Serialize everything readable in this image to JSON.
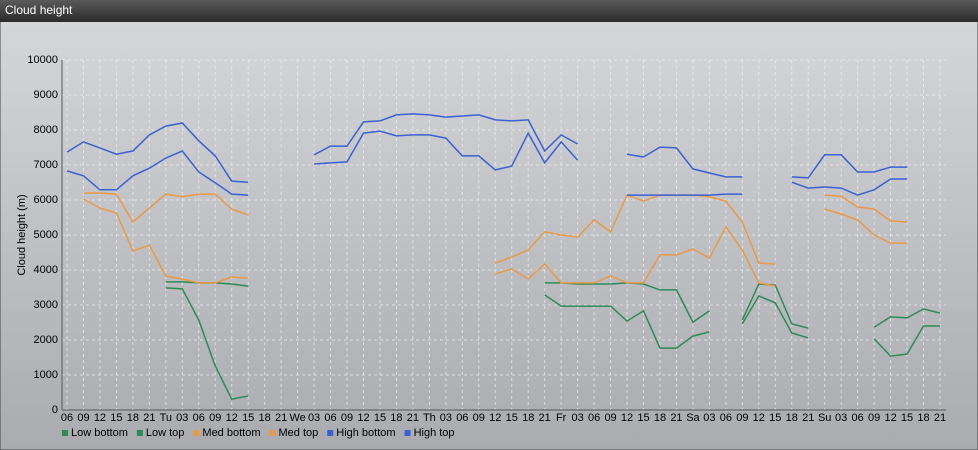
{
  "chart_data": {
    "type": "line",
    "title": "Cloud height",
    "ylabel": "Cloud height (m)",
    "categories": [
      "06",
      "09",
      "12",
      "15",
      "18",
      "21",
      "Tu",
      "03",
      "06",
      "09",
      "12",
      "15",
      "18",
      "21",
      "We",
      "03",
      "06",
      "09",
      "12",
      "15",
      "18",
      "21",
      "Th",
      "03",
      "06",
      "09",
      "12",
      "15",
      "18",
      "21",
      "Fr",
      "03",
      "06",
      "09",
      "12",
      "15",
      "18",
      "21",
      "Sa",
      "03",
      "06",
      "09",
      "12",
      "15",
      "18",
      "21",
      "Su",
      "03",
      "06",
      "09",
      "12",
      "15",
      "18",
      "21"
    ],
    "ylim": [
      0,
      10000
    ],
    "yticks": [
      0,
      1000,
      2000,
      3000,
      4000,
      5000,
      6000,
      7000,
      8000,
      9000,
      10000
    ],
    "grid": true,
    "series": [
      {
        "name": "Low bottom",
        "color": "#2e8b57",
        "values": [
          null,
          null,
          null,
          null,
          null,
          null,
          3490,
          3460,
          2570,
          1260,
          310,
          400,
          null,
          null,
          null,
          null,
          null,
          null,
          null,
          null,
          null,
          null,
          null,
          null,
          null,
          null,
          null,
          null,
          null,
          3290,
          2970,
          2970,
          2970,
          2970,
          2540,
          2830,
          1770,
          1770,
          2110,
          2230,
          null,
          2460,
          3260,
          3060,
          2200,
          2060,
          null,
          null,
          null,
          2030,
          1540,
          1600,
          2400,
          2400
        ]
      },
      {
        "name": "Low top",
        "color": "#2e8b57",
        "values": [
          null,
          null,
          null,
          null,
          null,
          null,
          3660,
          3660,
          3630,
          3630,
          3600,
          3540,
          null,
          null,
          null,
          null,
          null,
          null,
          null,
          null,
          null,
          null,
          null,
          null,
          null,
          null,
          null,
          null,
          null,
          3630,
          3630,
          3600,
          3600,
          3600,
          3630,
          3600,
          3430,
          3430,
          2510,
          2830,
          null,
          2570,
          3600,
          3570,
          2460,
          2340,
          null,
          null,
          null,
          2370,
          2660,
          2630,
          2890,
          2770
        ]
      },
      {
        "name": "Med bottom",
        "color": "#e89a48",
        "values": [
          null,
          6030,
          5770,
          5630,
          4540,
          4710,
          3830,
          3740,
          3630,
          3630,
          3800,
          3770,
          null,
          null,
          null,
          null,
          null,
          null,
          null,
          null,
          null,
          null,
          null,
          null,
          null,
          null,
          3890,
          4030,
          3740,
          4170,
          3630,
          3630,
          3630,
          3830,
          3630,
          3630,
          4430,
          4430,
          4600,
          4340,
          5230,
          4570,
          3630,
          3540,
          null,
          null,
          5740,
          5600,
          5430,
          5000,
          4770,
          4770,
          null,
          null
        ]
      },
      {
        "name": "Med top",
        "color": "#e89a48",
        "values": [
          null,
          6200,
          6200,
          6170,
          5370,
          5770,
          6170,
          6090,
          6170,
          6170,
          5740,
          5570,
          null,
          null,
          null,
          null,
          null,
          null,
          null,
          null,
          null,
          null,
          null,
          null,
          null,
          null,
          4200,
          4370,
          4570,
          5090,
          5000,
          4940,
          5430,
          5090,
          6140,
          5970,
          6140,
          6140,
          6140,
          6090,
          5970,
          5370,
          4200,
          4170,
          null,
          null,
          6140,
          6110,
          5800,
          5740,
          5400,
          5370,
          null,
          null
        ]
      },
      {
        "name": "High bottom",
        "color": "#3a62d0",
        "values": [
          6830,
          6690,
          6290,
          6290,
          6690,
          6910,
          7200,
          7400,
          6800,
          6490,
          6170,
          6140,
          null,
          null,
          null,
          7030,
          7060,
          7090,
          7910,
          7970,
          7830,
          7860,
          7860,
          7770,
          7260,
          7260,
          6860,
          6970,
          7910,
          7060,
          7660,
          7140,
          null,
          null,
          6140,
          6140,
          6140,
          6140,
          6140,
          6140,
          6170,
          6170,
          null,
          null,
          6510,
          6340,
          6370,
          6340,
          6140,
          6290,
          6600,
          6600,
          null,
          null
        ]
      },
      {
        "name": "High top",
        "color": "#3a62d0",
        "values": [
          7370,
          7660,
          7490,
          7310,
          7400,
          7860,
          8110,
          8200,
          7690,
          7260,
          6540,
          6510,
          null,
          null,
          null,
          7290,
          7540,
          7540,
          8230,
          8260,
          8430,
          8460,
          8430,
          8370,
          8400,
          8430,
          8290,
          8260,
          8290,
          7400,
          7860,
          7600,
          null,
          null,
          7310,
          7230,
          7510,
          7490,
          6890,
          6770,
          6660,
          6660,
          null,
          null,
          6660,
          6630,
          7290,
          7290,
          6800,
          6800,
          6940,
          6940,
          null,
          null
        ]
      }
    ]
  }
}
